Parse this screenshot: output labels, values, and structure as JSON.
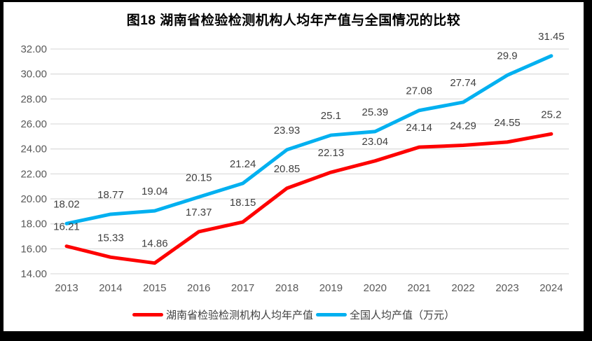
{
  "title": "图18 湖南省检验检测机构人均年产值与全国情况的比较",
  "chart_data": {
    "type": "line",
    "title": "图18 湖南省检验检测机构人均年产值与全国情况的比较",
    "categories": [
      "2013",
      "2014",
      "2015",
      "2016",
      "2017",
      "2018",
      "2019",
      "2020",
      "2021",
      "2022",
      "2023",
      "2024"
    ],
    "series": [
      {
        "name": "湖南省检验检测机构人均年产值",
        "color": "#FE0000",
        "values": [
          16.21,
          15.33,
          14.86,
          17.37,
          18.15,
          20.85,
          22.13,
          23.04,
          24.14,
          24.29,
          24.55,
          25.2
        ]
      },
      {
        "name": "全国人均产值（万元）",
        "color": "#00B0F0",
        "values": [
          18.02,
          18.77,
          19.04,
          20.15,
          21.24,
          23.93,
          25.1,
          25.39,
          27.08,
          27.74,
          29.9,
          31.45
        ]
      }
    ],
    "ylim": [
      14,
      32
    ],
    "ytick_step": 2,
    "ytick_labels": [
      "14.00",
      "16.00",
      "18.00",
      "20.00",
      "22.00",
      "24.00",
      "26.00",
      "28.00",
      "30.00",
      "32.00"
    ],
    "grid": "horizontal",
    "legend_position": "bottom",
    "data_labels": true
  },
  "colors": {
    "background": "#FFFFFF",
    "frame": "#000000",
    "gridline": "#DEDEDE",
    "axis_text": "#595959",
    "data_label_text": "#404040",
    "title_text": "#000000"
  }
}
